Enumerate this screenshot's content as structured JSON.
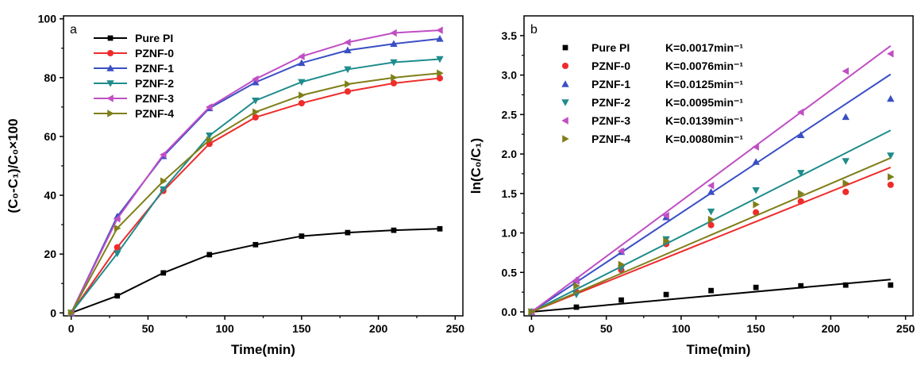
{
  "chart_data": [
    {
      "type": "line",
      "panel_label": "a",
      "xlabel": "Time(min)",
      "ylabel": "(C₀-C₁)/C₀×100",
      "xlim": [
        -5,
        255
      ],
      "ylim": [
        -1,
        101
      ],
      "xticks": [
        0,
        50,
        100,
        150,
        200,
        250
      ],
      "yticks": [
        0,
        20,
        40,
        60,
        80,
        100
      ],
      "legend_position": "top-left",
      "x": [
        0,
        30,
        60,
        90,
        120,
        150,
        180,
        210,
        240
      ],
      "series": [
        {
          "name": "Pure PI",
          "color": "#000000",
          "marker": "square",
          "values": [
            0,
            5.8,
            13.6,
            19.8,
            23.2,
            26.1,
            27.3,
            28.1,
            28.6
          ]
        },
        {
          "name": "PZNF-0",
          "color": "#ee2c2c",
          "marker": "circle",
          "values": [
            0,
            22.3,
            41.5,
            57.5,
            66.5,
            71.3,
            75.3,
            78.1,
            79.8
          ]
        },
        {
          "name": "PZNF-1",
          "color": "#3a4fc4",
          "marker": "triangle-up",
          "values": [
            0,
            32.8,
            53.3,
            69.6,
            78.4,
            85.0,
            89.3,
            91.5,
            93.2
          ]
        },
        {
          "name": "PZNF-2",
          "color": "#1f8c8c",
          "marker": "triangle-down",
          "values": [
            0,
            20.2,
            42.0,
            60.3,
            72.2,
            78.5,
            82.8,
            85.2,
            86.3
          ]
        },
        {
          "name": "PZNF-3",
          "color": "#c04fc4",
          "marker": "triangle-left",
          "values": [
            0,
            32.0,
            53.8,
            70.0,
            79.5,
            87.2,
            92.0,
            95.2,
            96.1
          ]
        },
        {
          "name": "PZNF-4",
          "color": "#7f7f1a",
          "marker": "triangle-right",
          "values": [
            0,
            28.8,
            44.8,
            58.8,
            68.3,
            74.0,
            77.8,
            80.0,
            81.5
          ]
        }
      ]
    },
    {
      "type": "scatter",
      "panel_label": "b",
      "xlabel": "Time(min)",
      "ylabel": "ln(C₀/C₁)",
      "xlim": [
        -5,
        255
      ],
      "ylim": [
        -0.05,
        3.75
      ],
      "xticks": [
        0,
        50,
        100,
        150,
        200,
        250
      ],
      "yticks": [
        0.0,
        0.5,
        1.0,
        1.5,
        2.0,
        2.5,
        3.0,
        3.5
      ],
      "legend_position": "top-left",
      "x": [
        0,
        30,
        60,
        90,
        120,
        150,
        180,
        210,
        240
      ],
      "series": [
        {
          "name": "Pure PI",
          "k_label": "K=0.0017min⁻¹",
          "color": "#000000",
          "marker": "square",
          "values": [
            0,
            0.06,
            0.15,
            0.22,
            0.27,
            0.31,
            0.33,
            0.34,
            0.34
          ],
          "fit": {
            "intercept": 0.0,
            "end": 0.41
          }
        },
        {
          "name": "PZNF-0",
          "k_label": "K=0.0076min⁻¹",
          "color": "#ee2c2c",
          "marker": "circle",
          "values": [
            0,
            0.25,
            0.53,
            0.86,
            1.1,
            1.26,
            1.4,
            1.52,
            1.61
          ],
          "fit": {
            "intercept": 0.0,
            "end": 1.83
          }
        },
        {
          "name": "PZNF-1",
          "k_label": "K=0.0125min⁻¹",
          "color": "#3a4fc4",
          "marker": "triangle-up",
          "values": [
            0,
            0.4,
            0.76,
            1.2,
            1.52,
            1.9,
            2.24,
            2.47,
            2.7
          ],
          "fit": {
            "intercept": 0.0,
            "end": 3.01
          }
        },
        {
          "name": "PZNF-2",
          "k_label": "K=0.0095min⁻¹",
          "color": "#1f8c8c",
          "marker": "triangle-down",
          "values": [
            0,
            0.22,
            0.55,
            0.92,
            1.27,
            1.54,
            1.76,
            1.91,
            1.98
          ],
          "fit": {
            "intercept": 0.0,
            "end": 2.3
          }
        },
        {
          "name": "PZNF-3",
          "k_label": "K=0.0139min⁻¹",
          "color": "#c04fc4",
          "marker": "triangle-left",
          "values": [
            0,
            0.39,
            0.77,
            1.22,
            1.6,
            2.09,
            2.53,
            3.05,
            3.27
          ],
          "fit": {
            "intercept": 0.0,
            "end": 3.37
          }
        },
        {
          "name": "PZNF-4",
          "k_label": "K=0.0080min⁻¹",
          "color": "#7f7f1a",
          "marker": "triangle-right",
          "values": [
            0,
            0.33,
            0.6,
            0.9,
            1.17,
            1.36,
            1.5,
            1.63,
            1.71
          ],
          "fit": {
            "intercept": 0.0,
            "end": 1.95
          }
        }
      ]
    }
  ]
}
